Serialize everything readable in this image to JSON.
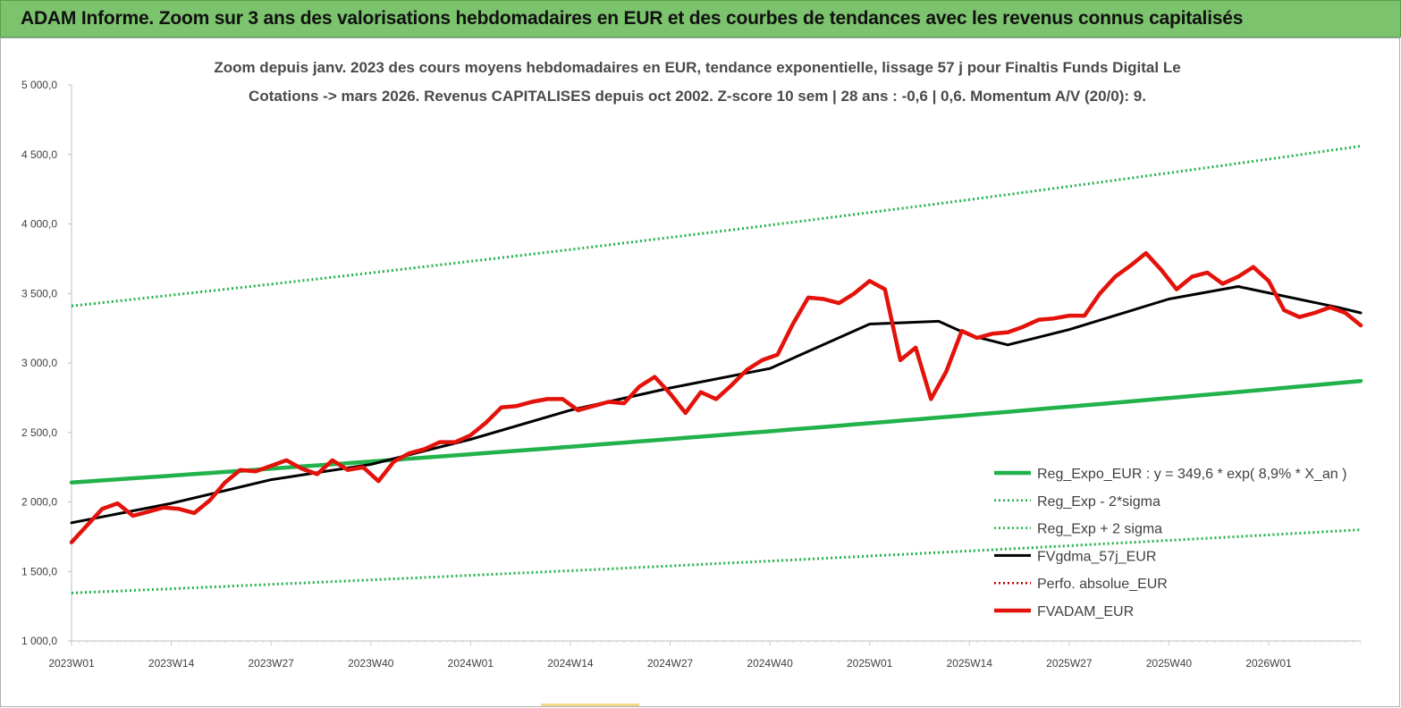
{
  "header": {
    "title": "ADAM Informe. Zoom sur 3 ans des valorisations hebdomadaires en EUR et des courbes de tendances avec les revenus connus capitalisés",
    "background": "#7cc36d"
  },
  "chart_data": {
    "type": "line",
    "title_line1": "Zoom depuis janv. 2023 des cours moyens hebdomadaires en EUR, tendance exponentielle, lissage 57 j pour Finaltis Funds Digital Le",
    "title_line2": "Cotations -> mars 2026. Revenus CAPITALISES depuis oct 2002. Z-score 10 sem | 28 ans : -0,6 | 0,6. Momentum A/V (20/0): 9.",
    "x_ticks": [
      "2023W01",
      "2023W14",
      "2023W27",
      "2023W40",
      "2024W01",
      "2024W14",
      "2024W27",
      "2024W40",
      "2025W01",
      "2025W14",
      "2025W27",
      "2025W40",
      "2026W01"
    ],
    "y_ticks": [
      "1 000,0",
      "1 500,0",
      "2 000,0",
      "2 500,0",
      "3 000,0",
      "3 500,0",
      "4 000,0",
      "4 500,0",
      "5 000,0"
    ],
    "ylim": [
      1000,
      5000
    ],
    "x_unit": "week index from 2023W01",
    "xlim": [
      0,
      168
    ],
    "grid": false,
    "legend_position": "bottom-right",
    "series": [
      {
        "name": "Reg_Expo_EUR : y = 349,6 * exp( 8,9% *  X_an )",
        "color": "#22b24c",
        "style": "thick",
        "x": [
          0,
          168
        ],
        "values": [
          2140,
          2870
        ]
      },
      {
        "name": "Reg_Exp - 2*sigma",
        "color": "#22b24c",
        "style": "dotted",
        "x": [
          0,
          168
        ],
        "values": [
          1345,
          1800
        ]
      },
      {
        "name": "Reg_Exp + 2 sigma",
        "color": "#22b24c",
        "style": "dotted",
        "x": [
          0,
          168
        ],
        "values": [
          3410,
          4560
        ]
      },
      {
        "name": "FVgdma_57j_EUR",
        "color": "#000000",
        "style": "solid",
        "x": [
          0,
          13,
          26,
          39,
          52,
          65,
          78,
          91,
          104,
          113,
          117,
          122,
          130,
          143,
          152,
          165,
          168
        ],
        "values": [
          1850,
          1990,
          2160,
          2270,
          2450,
          2660,
          2820,
          2960,
          3280,
          3300,
          3200,
          3130,
          3240,
          3460,
          3550,
          3400,
          3360
        ]
      },
      {
        "name": "Perfo. absolue_EUR",
        "color": "#c00000",
        "style": "dotted",
        "x": [],
        "values": []
      },
      {
        "name": "FVADAM_EUR",
        "color": "#e3120b",
        "style": "thick",
        "x": [
          0,
          4,
          6,
          8,
          10,
          12,
          14,
          16,
          18,
          20,
          22,
          24,
          26,
          28,
          30,
          32,
          34,
          36,
          38,
          40,
          42,
          44,
          46,
          48,
          50,
          52,
          54,
          56,
          58,
          60,
          62,
          64,
          66,
          68,
          70,
          72,
          74,
          76,
          78,
          80,
          82,
          84,
          86,
          88,
          90,
          92,
          94,
          96,
          98,
          100,
          102,
          104,
          106,
          108,
          110,
          112,
          114,
          116,
          118,
          120,
          122,
          124,
          126,
          128,
          130,
          132,
          134,
          136,
          138,
          140,
          142,
          144,
          146,
          148,
          150,
          152,
          154,
          156,
          158,
          160,
          162,
          164,
          166,
          168
        ],
        "values": [
          1710,
          1950,
          1990,
          1900,
          1930,
          1960,
          1950,
          1920,
          2010,
          2140,
          2230,
          2220,
          2260,
          2300,
          2240,
          2200,
          2300,
          2230,
          2250,
          2150,
          2290,
          2350,
          2380,
          2430,
          2430,
          2480,
          2570,
          2680,
          2690,
          2720,
          2740,
          2740,
          2660,
          2690,
          2720,
          2710,
          2830,
          2900,
          2780,
          2640,
          2790,
          2740,
          2840,
          2950,
          3020,
          3060,
          3280,
          3470,
          3460,
          3430,
          3500,
          3590,
          3530,
          3020,
          3110,
          2740,
          2940,
          3230,
          3180,
          3210,
          3220,
          3260,
          3310,
          3320,
          3340,
          3340,
          3500,
          3620,
          3700,
          3790,
          3670,
          3530,
          3620,
          3650,
          3570,
          3620,
          3690,
          3590,
          3380,
          3330,
          3360,
          3400,
          3360,
          3270
        ]
      }
    ]
  }
}
